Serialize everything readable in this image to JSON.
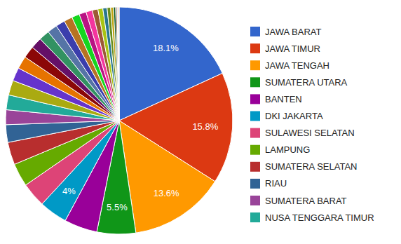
{
  "chart_data": {
    "type": "pie",
    "categories": [
      "JAWA BARAT",
      "JAWA TIMUR",
      "JAWA TENGAH",
      "SUMATERA UTARA",
      "BANTEN",
      "DKI JAKARTA",
      "SULAWESI SELATAN",
      "LAMPUNG",
      "SUMATERA SELATAN",
      "RIAU",
      "SUMATERA BARAT",
      "NUSA TENGGARA TIMUR",
      null,
      null,
      null,
      null,
      null,
      null,
      null,
      null,
      null,
      null,
      null,
      null,
      null,
      null,
      null,
      null,
      null,
      null,
      null,
      null,
      null,
      null
    ],
    "values": [
      18.1,
      15.8,
      13.6,
      5.5,
      4.7,
      4,
      3.5,
      3.3,
      3.2,
      2.5,
      2.1,
      2.1,
      2.1,
      1.9,
      1.8,
      1.7,
      1.6,
      1.5,
      1.4,
      1.3,
      1.2,
      1.1,
      1.0,
      0.9,
      0.8,
      0.7,
      0.6,
      0.5,
      0.4,
      0.3,
      0.2,
      0.1,
      0.1,
      0.1
    ],
    "value_labels": [
      "18.1%",
      "15.8%",
      "13.6%",
      "5.5%",
      null,
      "4%",
      null,
      null,
      null,
      null,
      null,
      null,
      null,
      null,
      null,
      null,
      null,
      null,
      null,
      null,
      null,
      null,
      null,
      null,
      null,
      null,
      null,
      null,
      null,
      null,
      null,
      null,
      null,
      null
    ],
    "data_labels": true,
    "legend": "right",
    "colors": [
      "#3366cc",
      "#dc3912",
      "#ff9900",
      "#109618",
      "#990099",
      "#0099c6",
      "#dd4477",
      "#66aa00",
      "#b82e2e",
      "#316395",
      "#994499",
      "#22aa99",
      "#aaaa11",
      "#6633cc",
      "#e67300",
      "#8b0707",
      "#651067",
      "#329262",
      "#5574a6",
      "#3b3eac",
      "#b77322",
      "#16d620",
      "#b91383",
      "#f4359e",
      "#9c5935",
      "#a9c413",
      "#2a778d",
      "#668d1c",
      "#bea413",
      "#0c5922",
      "#743411",
      "#3366cc",
      "#dc3912",
      "#ff9900"
    ]
  }
}
